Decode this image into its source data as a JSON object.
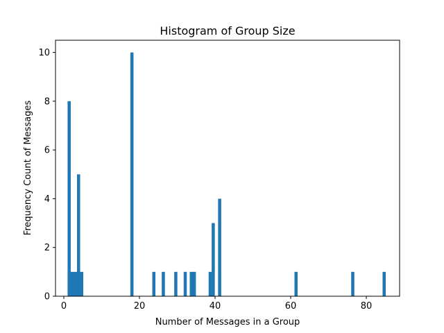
{
  "chart_data": {
    "type": "bar",
    "title": "Histogram of Group Size",
    "xlabel": "Number of Messages in a Group",
    "ylabel": "Frequency Count of Messages",
    "xlim": [
      -2.2,
      88.8
    ],
    "ylim": [
      0,
      10.5
    ],
    "xticks": [
      0,
      20,
      40,
      60,
      80
    ],
    "yticks": [
      0,
      2,
      4,
      6,
      8,
      10
    ],
    "bin_width": 0.83,
    "bar_color": "#1f77b4",
    "grid": false,
    "bins": [
      {
        "x": 1.0,
        "count": 8
      },
      {
        "x": 1.83,
        "count": 1
      },
      {
        "x": 2.66,
        "count": 1
      },
      {
        "x": 3.49,
        "count": 5
      },
      {
        "x": 4.32,
        "count": 1
      },
      {
        "x": 17.6,
        "count": 10
      },
      {
        "x": 23.4,
        "count": 1
      },
      {
        "x": 25.9,
        "count": 1
      },
      {
        "x": 29.2,
        "count": 1
      },
      {
        "x": 31.7,
        "count": 1
      },
      {
        "x": 33.3,
        "count": 1
      },
      {
        "x": 34.1,
        "count": 1
      },
      {
        "x": 38.3,
        "count": 1
      },
      {
        "x": 39.1,
        "count": 3
      },
      {
        "x": 40.8,
        "count": 4
      },
      {
        "x": 61.0,
        "count": 1
      },
      {
        "x": 76.0,
        "count": 1
      },
      {
        "x": 84.3,
        "count": 1
      }
    ]
  }
}
